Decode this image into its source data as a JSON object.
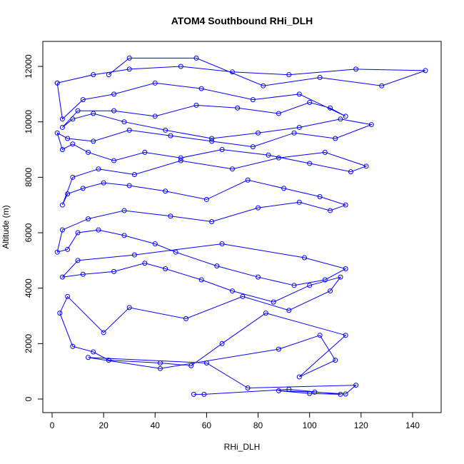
{
  "chart_data": {
    "type": "line",
    "title": "ATOM4 Southbound RHi_DLH",
    "x_label": "RHi_DLH",
    "y_label": "Altitude (m)",
    "color": "#0000ff",
    "markers": true,
    "grid": false,
    "xlim": [
      -3.6,
      151.1
    ],
    "ylim": [
      -489,
      12902
    ],
    "xticks": [
      0,
      20,
      40,
      60,
      80,
      100,
      120,
      140
    ],
    "yticks": [
      0,
      2000,
      4000,
      6000,
      8000,
      10000,
      12000
    ],
    "x": [
      55,
      59,
      92,
      112,
      100,
      88,
      102,
      114,
      118,
      76,
      60,
      14,
      42,
      88,
      104,
      110,
      96,
      114,
      83,
      66,
      54,
      42,
      22,
      16,
      8,
      3,
      6,
      20,
      30,
      52,
      74,
      92,
      108,
      112,
      100,
      86,
      70,
      58,
      44,
      36,
      24,
      12,
      4,
      10,
      32,
      66,
      98,
      114,
      106,
      94,
      80,
      64,
      48,
      40,
      28,
      18,
      10,
      6,
      2,
      4,
      14,
      28,
      46,
      62,
      80,
      96,
      108,
      114,
      104,
      90,
      76,
      60,
      44,
      30,
      20,
      12,
      6,
      4,
      8,
      18,
      32,
      50,
      70,
      88,
      106,
      122,
      116,
      100,
      84,
      66,
      50,
      36,
      24,
      14,
      8,
      4,
      2,
      6,
      16,
      30,
      46,
      62,
      78,
      94,
      110,
      124,
      112,
      96,
      80,
      62,
      44,
      28,
      16,
      8,
      4,
      10,
      24,
      40,
      56,
      72,
      88,
      100,
      108,
      114,
      96,
      78,
      58,
      40,
      24,
      12,
      4,
      2,
      2,
      16,
      30,
      50,
      70,
      92,
      118,
      145,
      128,
      104,
      82,
      56,
      30,
      22
    ],
    "values": [
      170,
      170,
      350,
      170,
      200,
      300,
      250,
      180,
      500,
      400,
      1300,
      1500,
      1100,
      1800,
      2300,
      1400,
      800,
      2300,
      3100,
      2000,
      1200,
      1300,
      1400,
      1700,
      1900,
      3100,
      3700,
      2400,
      3300,
      2900,
      3700,
      3200,
      3900,
      4400,
      4100,
      3500,
      3900,
      4300,
      4700,
      4900,
      4600,
      4500,
      4400,
      5000,
      5200,
      5600,
      5100,
      4700,
      4300,
      4100,
      4400,
      4800,
      5300,
      5600,
      5900,
      6100,
      6000,
      5400,
      5300,
      6100,
      6500,
      6800,
      6600,
      6400,
      6900,
      7100,
      6800,
      7000,
      7300,
      7600,
      7900,
      7200,
      7500,
      7700,
      7800,
      7600,
      7400,
      7000,
      8000,
      8300,
      8100,
      8600,
      8300,
      8700,
      8900,
      8400,
      8200,
      8500,
      8800,
      9000,
      8700,
      8900,
      8600,
      8900,
      9200,
      9000,
      9600,
      9400,
      9300,
      9700,
      9500,
      9300,
      9100,
      9600,
      9400,
      9900,
      10100,
      9800,
      9600,
      9400,
      9700,
      10000,
      10300,
      10100,
      9800,
      10400,
      10400,
      10200,
      10600,
      10500,
      10300,
      10700,
      10500,
      10200,
      11000,
      10800,
      11200,
      11400,
      11000,
      10800,
      10100,
      11400,
      11400,
      11700,
      11900,
      12000,
      11800,
      11700,
      11900,
      11850,
      11300,
      11600,
      11300,
      12300,
      12300,
      11700
    ]
  }
}
